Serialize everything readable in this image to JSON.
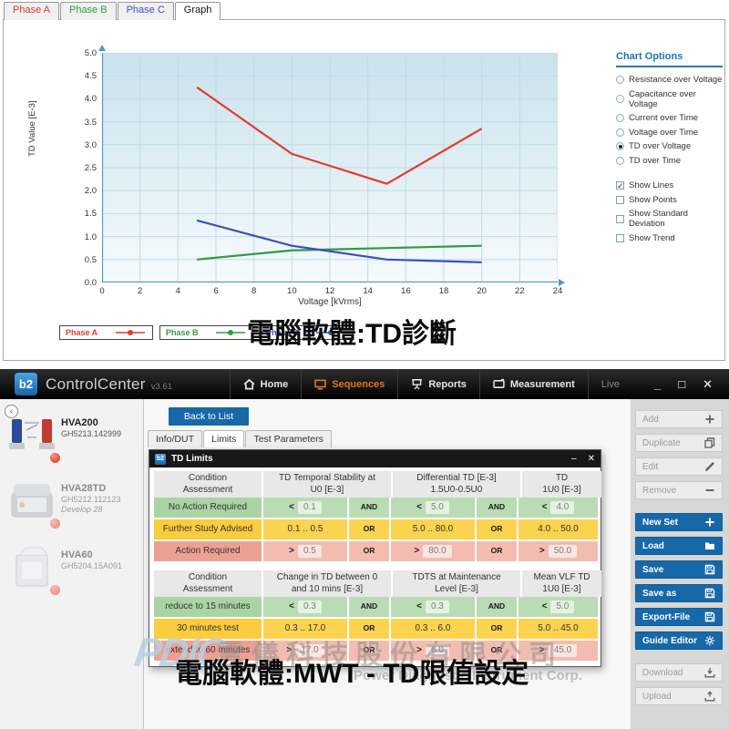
{
  "diagnostic_app": {
    "tabs": [
      {
        "label": "Phase A",
        "color": "#d93a2e",
        "active": false
      },
      {
        "label": "Phase B",
        "color": "#2e9e3e",
        "active": false
      },
      {
        "label": "Phase C",
        "color": "#3c50bd",
        "active": false
      },
      {
        "label": "Graph",
        "color": "#111111",
        "active": true
      }
    ],
    "chart_options": {
      "title": "Chart Options",
      "radios": [
        {
          "label": "Resistance over Voltage",
          "selected": false
        },
        {
          "label": "Capacitance over Voltage",
          "selected": false
        },
        {
          "label": "Current over Time",
          "selected": false
        },
        {
          "label": "Voltage over Time",
          "selected": false
        },
        {
          "label": "TD over Voltage",
          "selected": true
        },
        {
          "label": "TD over Time",
          "selected": false
        }
      ],
      "checkboxes": [
        {
          "label": "Show Lines",
          "checked": true
        },
        {
          "label": "Show Points",
          "checked": false
        },
        {
          "label": "Show Standard Deviation",
          "checked": false
        },
        {
          "label": "Show Trend",
          "checked": false
        }
      ]
    },
    "caption": "電腦軟體:TD診斷"
  },
  "chart_data": {
    "type": "line",
    "x": [
      5,
      10,
      15,
      20
    ],
    "series": [
      {
        "name": "Phase A",
        "color": "#e8392b",
        "values": [
          4.25,
          2.8,
          2.15,
          3.35
        ]
      },
      {
        "name": "Phase B",
        "color": "#2e9e3e",
        "values": [
          0.5,
          0.7,
          0.75,
          0.8
        ]
      },
      {
        "name": "Phase C",
        "color": "#3c50bd",
        "values": [
          1.35,
          0.8,
          0.5,
          0.44
        ]
      }
    ],
    "xlabel": "Voltage [kVrms]",
    "ylabel": "TD Value [E-3]",
    "xlim": [
      0,
      24
    ],
    "ylim": [
      0,
      5
    ],
    "xtick_step": 2,
    "ytick_step": 0.5,
    "grid": true,
    "legend_position": "bottom"
  },
  "control_center": {
    "header": {
      "logo_text": "b2",
      "title": "ControlCenter",
      "version": "v3.61",
      "nav": [
        {
          "label": "Home",
          "icon": "home",
          "state": "normal"
        },
        {
          "label": "Sequences",
          "icon": "sequences",
          "state": "active"
        },
        {
          "label": "Reports",
          "icon": "reports",
          "state": "normal"
        },
        {
          "label": "Measurement",
          "icon": "measurement",
          "state": "normal"
        },
        {
          "label": "Live",
          "icon": "",
          "state": "dim"
        }
      ],
      "window_controls": [
        "minimize",
        "maximize",
        "close"
      ]
    },
    "devices": [
      {
        "name": "HVA200",
        "serial": "GH5213.142999",
        "note": "",
        "art": "hva200",
        "dim": false
      },
      {
        "name": "HVA28TD",
        "serial": "GH5212.112123",
        "note": "Develop 28",
        "art": "hva28td",
        "dim": true
      },
      {
        "name": "HVA60",
        "serial": "GH5204.15A091",
        "note": "",
        "art": "hva60",
        "dim": true
      }
    ],
    "content": {
      "back_button": "Back to List",
      "tabs": [
        {
          "label": "Info/DUT",
          "active": false
        },
        {
          "label": "Limits",
          "active": true
        },
        {
          "label": "Test Parameters",
          "active": false
        }
      ]
    },
    "side_actions": [
      [
        {
          "label": "Add",
          "icon": "plus"
        },
        {
          "label": "Duplicate",
          "icon": "copy"
        },
        {
          "label": "Edit",
          "icon": "pencil"
        },
        {
          "label": "Remove",
          "icon": "minus"
        }
      ],
      [
        {
          "label": "New Set",
          "icon": "plus",
          "blue": true
        },
        {
          "label": "Load",
          "icon": "folder",
          "blue": true
        },
        {
          "label": "Save",
          "icon": "save",
          "blue": true
        },
        {
          "label": "Save as",
          "icon": "save",
          "blue": true
        },
        {
          "label": "Export-File",
          "icon": "save",
          "blue": true
        },
        {
          "label": "Guide Editor",
          "icon": "gear",
          "blue": true
        }
      ],
      [
        {
          "label": "Download",
          "icon": "download"
        },
        {
          "label": "Upload",
          "icon": "upload"
        }
      ]
    ],
    "dialog": {
      "title": "TD Limits",
      "logo_text": "b2",
      "tables": [
        {
          "headers": [
            [
              "Condition",
              "Assessment"
            ],
            [
              "TD Temporal Stability at",
              "U0 [E-3]"
            ],
            [
              "Differential TD [E-3]",
              "1.5U0-0.5U0"
            ],
            [
              "TD",
              "1U0 [E-3]"
            ]
          ],
          "rows": [
            {
              "label": "No Action Required",
              "tone": "green",
              "cells": [
                {
                  "op": "<",
                  "val": "0.1",
                  "boxed": true
                },
                {
                  "join": "AND"
                },
                {
                  "op": "<",
                  "val": "5.0",
                  "boxed": true
                },
                {
                  "join": "AND"
                },
                {
                  "op": "<",
                  "val": "4.0",
                  "boxed": true
                }
              ]
            },
            {
              "label": "Further Study Advised",
              "tone": "yellow",
              "cells": [
                {
                  "op": "",
                  "val": "0.1 .. 0.5",
                  "boxed": false
                },
                {
                  "join": "OR"
                },
                {
                  "op": "",
                  "val": "5.0 .. 80.0",
                  "boxed": false
                },
                {
                  "join": "OR"
                },
                {
                  "op": "",
                  "val": "4.0 .. 50.0",
                  "boxed": false
                }
              ]
            },
            {
              "label": "Action Required",
              "tone": "red",
              "cells": [
                {
                  "op": ">",
                  "val": "0.5",
                  "boxed": true
                },
                {
                  "join": "OR"
                },
                {
                  "op": ">",
                  "val": "80.0",
                  "boxed": true
                },
                {
                  "join": "OR"
                },
                {
                  "op": ">",
                  "val": "50.0",
                  "boxed": true
                }
              ]
            }
          ]
        },
        {
          "headers": [
            [
              "Condition",
              "Assessment"
            ],
            [
              "Change in TD between 0",
              "and 10 mins [E-3]"
            ],
            [
              "TDTS at Maintenance",
              "Level [E-3]"
            ],
            [
              "Mean VLF TD",
              "1U0 [E-3]"
            ]
          ],
          "rows": [
            {
              "label": "reduce to 15 minutes",
              "tone": "green",
              "cells": [
                {
                  "op": "<",
                  "val": "0.3",
                  "boxed": true
                },
                {
                  "join": "AND"
                },
                {
                  "op": "<",
                  "val": "0.3",
                  "boxed": true
                },
                {
                  "join": "AND"
                },
                {
                  "op": "<",
                  "val": "5.0",
                  "boxed": true
                }
              ]
            },
            {
              "label": "30 minutes test",
              "tone": "yellow",
              "cells": [
                {
                  "op": "",
                  "val": "0.3 .. 17.0",
                  "boxed": false
                },
                {
                  "join": "OR"
                },
                {
                  "op": "",
                  "val": "0.3 .. 6.0",
                  "boxed": false
                },
                {
                  "join": "OR"
                },
                {
                  "op": "",
                  "val": "5.0 .. 45.0",
                  "boxed": false
                }
              ]
            },
            {
              "label": "extend to 60 minutes",
              "tone": "red",
              "cells": [
                {
                  "op": ">",
                  "val": "17.0",
                  "boxed": true
                },
                {
                  "join": "OR"
                },
                {
                  "op": ">",
                  "val": "6.0",
                  "boxed": true
                },
                {
                  "join": "OR"
                },
                {
                  "op": ">",
                  "val": "45.0",
                  "boxed": true
                }
              ]
            }
          ]
        }
      ]
    },
    "caption": "電腦軟體:MWT - TD限值設定",
    "watermark": {
      "logo": "PDIC",
      "line1": "雲儀科技股份有限公司",
      "line2": "Power Diagnostic Instrument Corp."
    }
  },
  "colors": {
    "accent_blue": "#1768a8",
    "logo_blue": "#1b7fd4",
    "options_blue": "#1a74b5",
    "active_orange": "#e0761c",
    "green_row": "#b9dcb4",
    "yellow_row": "#fcd34f",
    "red_row": "#f4bcb0"
  }
}
